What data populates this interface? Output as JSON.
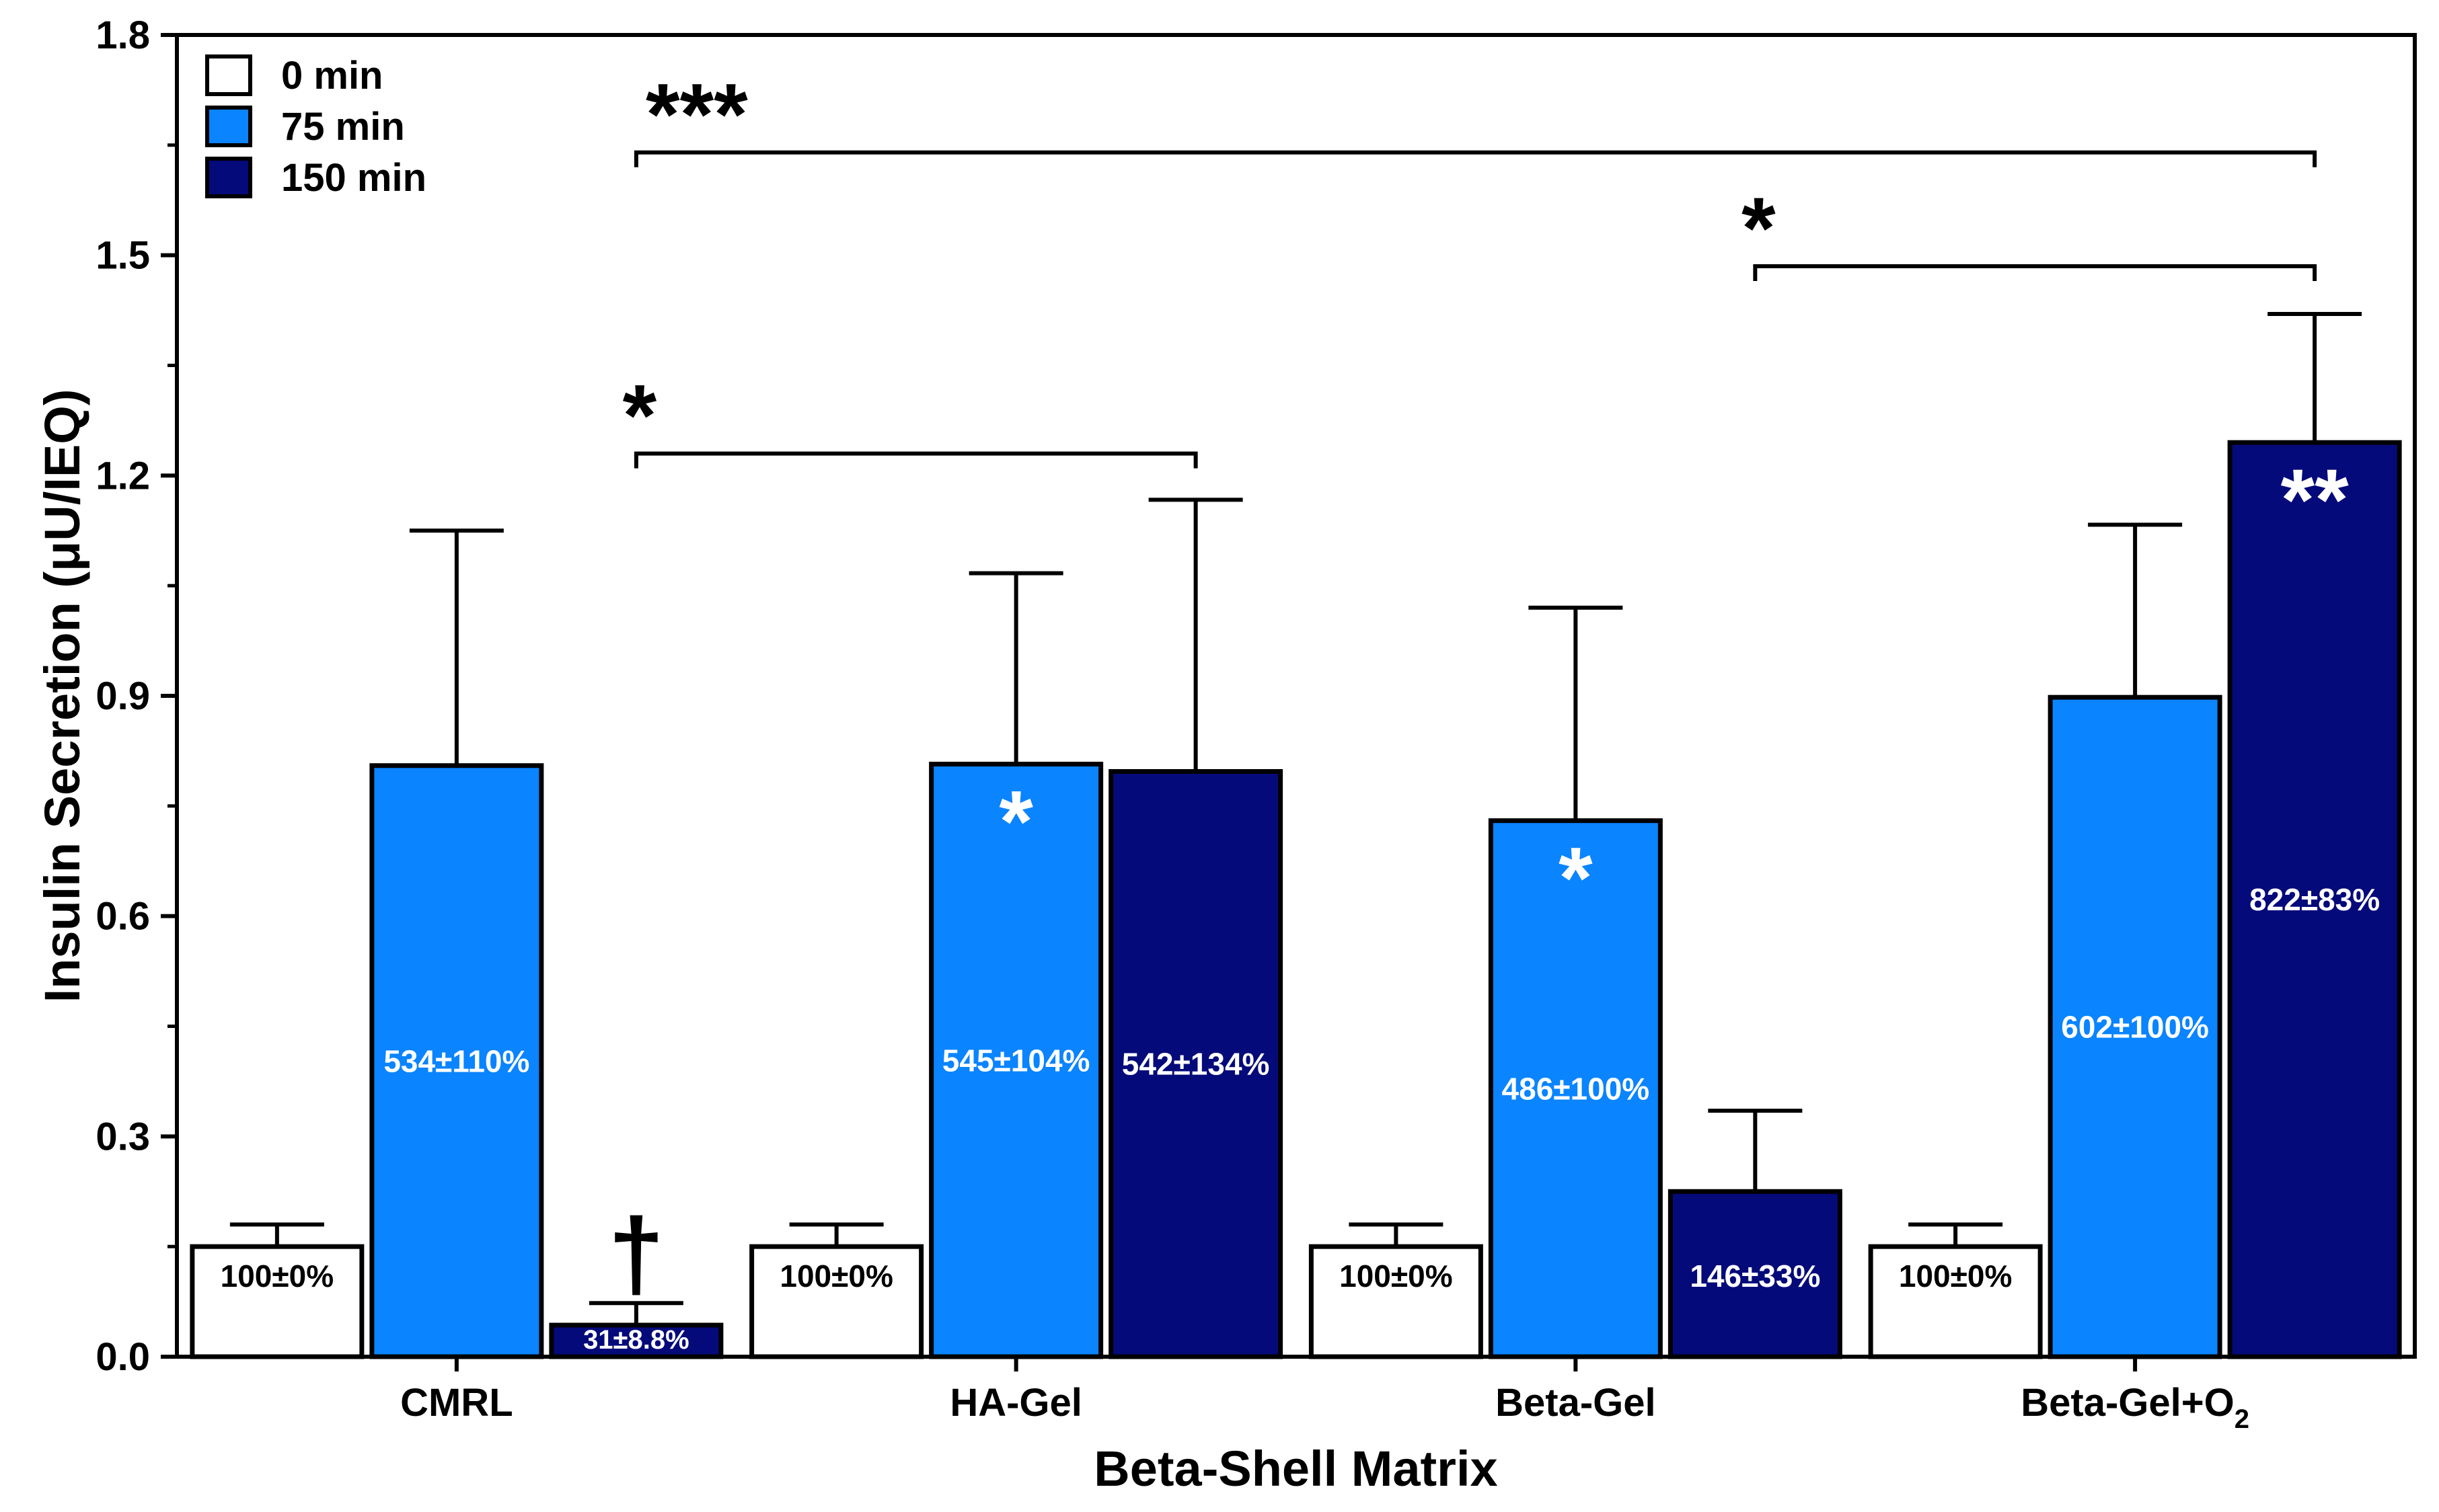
{
  "chart_data": {
    "type": "bar",
    "title": "",
    "xlabel": "Beta-Shell Matrix",
    "ylabel": "Insulin Secretion (μU/IEQ)",
    "ylim": [
      0,
      1.8
    ],
    "yticks": [
      "0.0",
      "0.3",
      "0.6",
      "0.9",
      "1.2",
      "1.5",
      "1.8"
    ],
    "categories": [
      "CMRL",
      "HA-Gel",
      "Beta-Gel",
      "Beta-Gel+O"
    ],
    "category_subscripts": [
      "",
      "",
      "",
      "2"
    ],
    "legend_position": "top-left",
    "grid": false,
    "series": [
      {
        "name": "0 min",
        "color": "#ffffff",
        "values": [
          0.15,
          0.15,
          0.15,
          0.15
        ],
        "errors": [
          0.03,
          0.03,
          0.03,
          0.03
        ],
        "labels": [
          "100±0%",
          "100±0%",
          "100±0%",
          "100±0%"
        ],
        "label_color": "#000000",
        "marks": [
          "",
          "",
          "",
          ""
        ]
      },
      {
        "name": "75 min",
        "color": "#0a84ff",
        "values": [
          0.805,
          0.807,
          0.73,
          0.898
        ],
        "errors": [
          0.32,
          0.26,
          0.29,
          0.235
        ],
        "labels": [
          "534±110%",
          "545±104%",
          "486±100%",
          "602±100%"
        ],
        "label_color": "#ffffff",
        "marks": [
          "",
          "*",
          "*",
          ""
        ]
      },
      {
        "name": "150 min",
        "color": "#050a7a",
        "values": [
          0.043,
          0.797,
          0.225,
          1.245
        ],
        "errors": [
          0.03,
          0.37,
          0.11,
          0.175
        ],
        "labels": [
          "31±8.8%",
          "542±134%",
          "146±33%",
          "822±83%"
        ],
        "label_color": "#ffffff",
        "marks": [
          "†",
          "",
          "",
          "**"
        ]
      }
    ],
    "significance": [
      {
        "text": "***",
        "from_category": 0,
        "from_series": 2,
        "to_category": 3,
        "to_series": 2,
        "y": 1.64
      },
      {
        "text": "*",
        "from_category": 2,
        "from_series": 2,
        "to_category": 3,
        "to_series": 2,
        "y": 1.485
      },
      {
        "text": "*",
        "from_category": 0,
        "from_series": 2,
        "to_category": 1,
        "to_series": 2,
        "y": 1.23
      }
    ]
  }
}
